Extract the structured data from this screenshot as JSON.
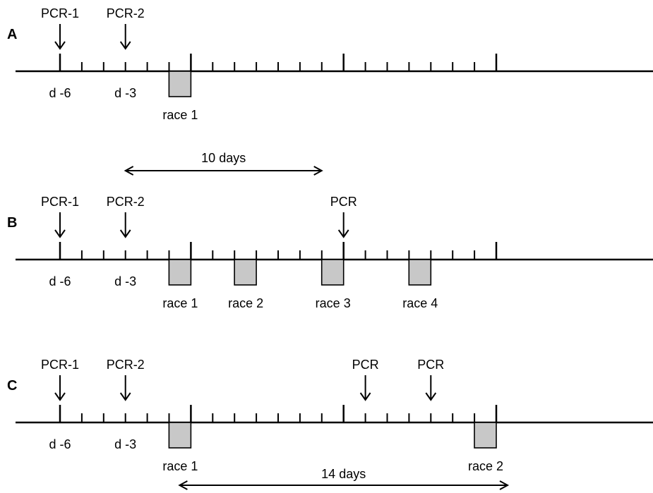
{
  "panels": [
    {
      "label": "A",
      "markers": [
        {
          "day": -6,
          "text": "PCR-1"
        },
        {
          "day": -3,
          "text": "PCR-2"
        }
      ],
      "day_labels": [
        {
          "day": -6,
          "text": "d -6"
        },
        {
          "day": -3,
          "text": "d -3"
        }
      ],
      "races": [
        {
          "day": 0,
          "text": "race 1"
        }
      ],
      "span": null
    },
    {
      "label": "B",
      "markers": [
        {
          "day": -6,
          "text": "PCR-1"
        },
        {
          "day": -3,
          "text": "PCR-2"
        },
        {
          "day": 7,
          "text": "PCR"
        }
      ],
      "day_labels": [
        {
          "day": -6,
          "text": "d -6"
        },
        {
          "day": -3,
          "text": "d -3"
        }
      ],
      "races": [
        {
          "day": 0,
          "text": "race 1"
        },
        {
          "day": 3,
          "text": "race 2"
        },
        {
          "day": 7,
          "text": "race 3"
        },
        {
          "day": 11,
          "text": "race 4"
        }
      ],
      "span": {
        "from_day": -3,
        "to_day": 7,
        "text": "10 days",
        "position": "above"
      }
    },
    {
      "label": "C",
      "markers": [
        {
          "day": -6,
          "text": "PCR-1"
        },
        {
          "day": -3,
          "text": "PCR-2"
        },
        {
          "day": 8,
          "text": "PCR"
        },
        {
          "day": 11,
          "text": "PCR"
        }
      ],
      "day_labels": [
        {
          "day": -6,
          "text": "d -6"
        },
        {
          "day": -3,
          "text": "d -3"
        }
      ],
      "races": [
        {
          "day": 0,
          "text": "race 1"
        },
        {
          "day": 14,
          "text": "race 2"
        }
      ],
      "span": {
        "from_day": 0,
        "to_day": 14,
        "text": "14 days",
        "position": "below"
      }
    }
  ],
  "timeline": {
    "first_day": -6,
    "last_day": 14,
    "major_tick_days": [
      -6,
      0,
      7,
      14
    ]
  }
}
